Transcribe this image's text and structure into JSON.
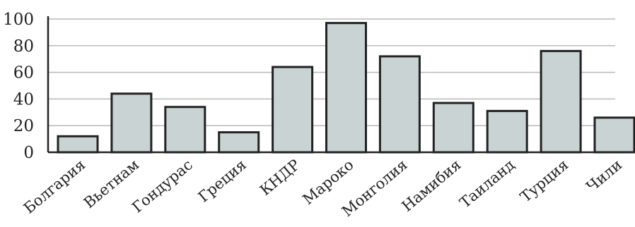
{
  "chart_data": {
    "type": "bar",
    "categories": [
      "Болгария",
      "Вьетнам",
      "Гондурас",
      "Греция",
      "КНДР",
      "Мароко",
      "Монголия",
      "Намибия",
      "Таиланд",
      "Турция",
      "Чили"
    ],
    "values": [
      12,
      44,
      34,
      15,
      64,
      97,
      72,
      37,
      31,
      76,
      26
    ],
    "yticks": [
      "0",
      "20",
      "40",
      "60",
      "80",
      "100"
    ],
    "ylim": [
      0,
      100
    ],
    "grid": true,
    "colors": {
      "bar_fill": "#c9d3d3",
      "bar_stroke": "#222222",
      "grid": "#b9b9b9"
    }
  }
}
